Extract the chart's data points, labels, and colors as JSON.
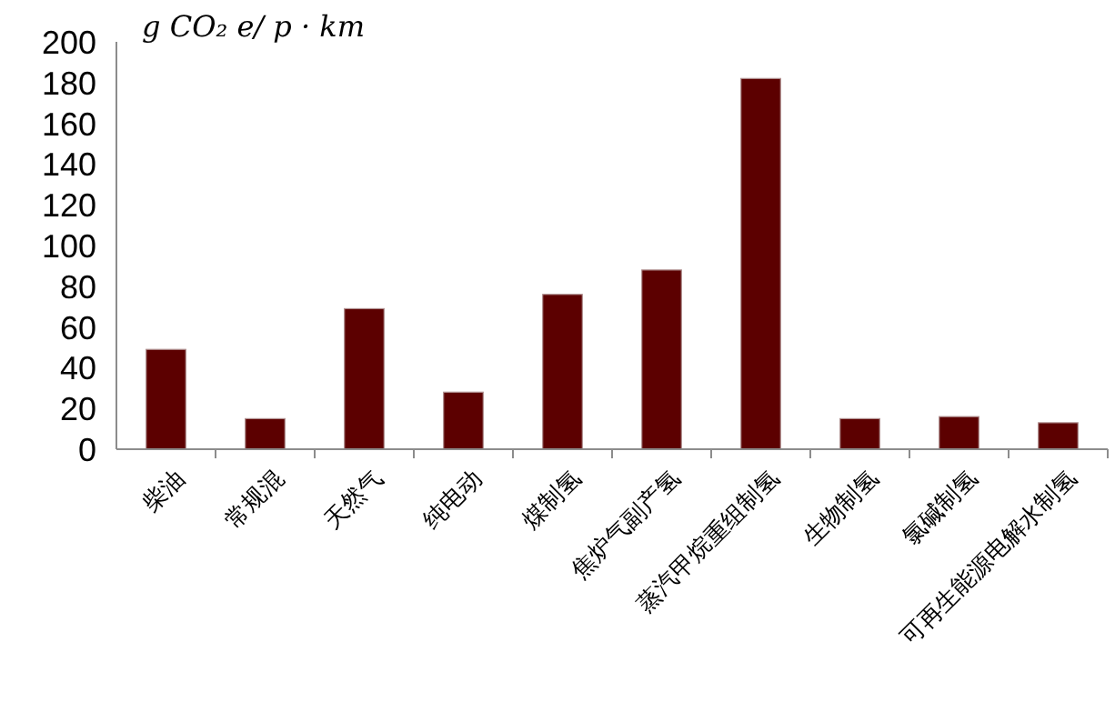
{
  "chart_data": {
    "type": "bar",
    "ylabel": "g CO₂ e/ p · km",
    "categories": [
      "柴油",
      "常规混",
      "天然气",
      "纯电动",
      "煤制氢",
      "焦炉气副产氢",
      "蒸汽甲烷重组制氢",
      "生物制氢",
      "氯碱制氢",
      "可再生能源电解水制氢"
    ],
    "values": [
      49,
      15,
      69,
      28,
      76,
      88,
      182,
      15,
      16,
      13
    ],
    "color": "#5c0000",
    "ylim": [
      0,
      200
    ],
    "yticks": [
      0,
      20,
      40,
      60,
      80,
      100,
      120,
      140,
      160,
      180,
      200
    ],
    "grid": false,
    "legend": false
  }
}
